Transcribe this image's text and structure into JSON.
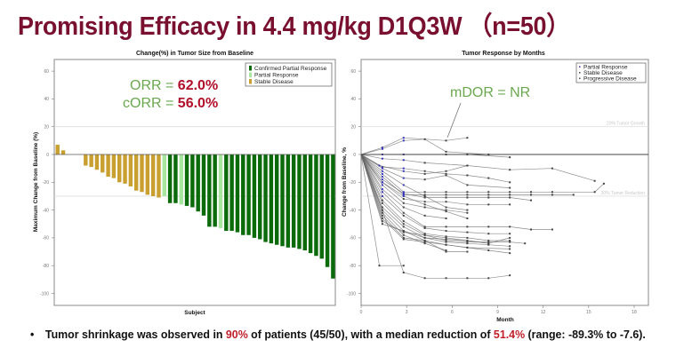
{
  "slide": {
    "title": "Promising Efficacy in 4.4 mg/kg D1Q3W （n=50）",
    "bullet": {
      "marker": "•",
      "parts": [
        {
          "text": "Tumor shrinkage was observed in ",
          "highlight": false
        },
        {
          "text": "90%",
          "highlight": true
        },
        {
          "text": " of patients (45/50), with a median reduction of ",
          "highlight": false
        },
        {
          "text": "51.4%",
          "highlight": true
        },
        {
          "text": " (range: -89.3% to -7.6).",
          "highlight": false
        }
      ]
    },
    "colors": {
      "title": "#7a1030",
      "highlight": "#c0202a",
      "annotation_green": "#6aa84f",
      "annotation_red": "#b0102a"
    }
  },
  "chart_data": [
    {
      "type": "bar",
      "title": "Change(%) in Tumor Size from Baseline",
      "xlabel": "Subject",
      "ylabel": "Maximum Change from Baseline (%)",
      "ylim": [
        -110,
        68
      ],
      "yticks": [
        60,
        40,
        20,
        0,
        -20,
        -40,
        -60,
        -80,
        -100
      ],
      "reference_lines": [
        20,
        -30
      ],
      "grid": false,
      "legend_position": "top-right",
      "legend": [
        {
          "label": "Confirmed Partial Response",
          "color": "#0b6b0b"
        },
        {
          "label": "Partial Response",
          "color": "#a8e6a0"
        },
        {
          "label": "Stable Disease",
          "color": "#c9a030"
        }
      ],
      "annotations": [
        {
          "label": "ORR = ",
          "value": "62.0%"
        },
        {
          "label": "cORR = ",
          "value": "56.0%"
        }
      ],
      "categories_count": 50,
      "values": [
        7,
        3,
        0,
        0,
        0,
        -8,
        -9,
        -11,
        -13,
        -16,
        -17,
        -20,
        -21,
        -23,
        -26,
        -27,
        -29,
        -30,
        -31,
        -30,
        -35,
        -35,
        -36,
        -37,
        -38,
        -41,
        -44,
        -52,
        -52,
        -53,
        -55,
        -55,
        -56,
        -58,
        -58,
        -60,
        -61,
        -63,
        -64,
        -65,
        -66,
        -67,
        -67,
        -68,
        -69,
        -71,
        -73,
        -75,
        -81,
        -89.3
      ],
      "response": [
        "SD",
        "SD",
        "SD",
        "SD",
        "SD",
        "SD",
        "SD",
        "SD",
        "SD",
        "SD",
        "SD",
        "SD",
        "SD",
        "SD",
        "SD",
        "SD",
        "SD",
        "SD",
        "SD",
        "PR",
        "cPR",
        "cPR",
        "PR",
        "cPR",
        "cPR",
        "cPR",
        "cPR",
        "cPR",
        "cPR",
        "PR",
        "cPR",
        "cPR",
        "cPR",
        "cPR",
        "cPR",
        "cPR",
        "cPR",
        "cPR",
        "cPR",
        "cPR",
        "cPR",
        "cPR",
        "cPR",
        "cPR",
        "cPR",
        "cPR",
        "cPR",
        "cPR",
        "cPR",
        "cPR"
      ]
    },
    {
      "type": "line",
      "title": "Tumor Response by Months",
      "xlabel": "Month",
      "ylabel": "Change from Baseline, %",
      "xlim": [
        0,
        19
      ],
      "ylim": [
        -110,
        68
      ],
      "xticks": [
        0,
        3,
        6,
        9,
        12,
        15,
        18
      ],
      "yticks": [
        60,
        40,
        20,
        0,
        -20,
        -40,
        -60,
        -80,
        -100
      ],
      "reference_lines": [
        {
          "y": 20,
          "label": "20% Tumor Growth"
        },
        {
          "y": -30,
          "label": "30% Tumor Reduction"
        }
      ],
      "legend_position": "top-right",
      "legend": [
        {
          "label": "Partial Response",
          "color": "#2a2aa0"
        },
        {
          "label": "Stable Disease",
          "color": "#444444"
        },
        {
          "label": "Progressive Disease",
          "color": "#444444"
        }
      ],
      "annotation": {
        "text": "mDOR = NR"
      },
      "series": [
        {
          "x": [
            0,
            1.4,
            2.8,
            5.6,
            7.0
          ],
          "y": [
            0,
            5,
            12,
            10,
            12
          ]
        },
        {
          "x": [
            0,
            1.4,
            2.8,
            4.2,
            5.6,
            8.4
          ],
          "y": [
            0,
            4,
            10,
            11,
            2,
            0
          ]
        },
        {
          "x": [
            0,
            1.4,
            2.8,
            5.6,
            7.0,
            9.8
          ],
          "y": [
            0,
            0,
            0,
            0,
            0,
            -2
          ]
        },
        {
          "x": [
            0,
            1.4,
            2.8,
            4.2,
            7.0,
            9.8,
            12.6,
            15.4
          ],
          "y": [
            0,
            -3,
            -4,
            -6,
            -8,
            -11,
            -10,
            -19
          ]
        },
        {
          "x": [
            0,
            1.4,
            2.8,
            4.2,
            5.6,
            7.0,
            8.4,
            9.8
          ],
          "y": [
            0,
            -9,
            -10,
            -12,
            -14,
            -15,
            -17,
            -20
          ]
        },
        {
          "x": [
            0,
            1.2,
            2.8,
            4.2,
            5.6,
            7.0
          ],
          "y": [
            0,
            -8,
            -12,
            -14,
            -12,
            -8
          ]
        },
        {
          "x": [
            0,
            1.4,
            2.8,
            4.2,
            5.6,
            7.0,
            9.8
          ],
          "y": [
            0,
            -10,
            -17,
            -18,
            -15,
            -22,
            -24
          ]
        },
        {
          "x": [
            0,
            1.4,
            2.8,
            4.2,
            5.6,
            7.0,
            8.4,
            9.8,
            11.2,
            12.6,
            15.4,
            16.0
          ],
          "y": [
            0,
            -14,
            -27,
            -27,
            -27,
            -27,
            -27,
            -27,
            -27,
            -27,
            -27,
            -21
          ]
        },
        {
          "x": [
            0,
            1.4,
            2.8,
            4.2,
            5.6,
            7.0,
            8.4,
            9.8,
            11.2,
            12.6,
            14.0
          ],
          "y": [
            0,
            -16,
            -29,
            -29,
            -29,
            -29,
            -29,
            -29,
            -29,
            -29,
            -29
          ]
        },
        {
          "x": [
            0,
            1.4,
            2.8,
            4.2,
            5.6,
            7.0,
            8.4,
            9.8,
            11.2
          ],
          "y": [
            0,
            -18,
            -28,
            -31,
            -31,
            -31,
            -31,
            -31,
            -33
          ]
        },
        {
          "x": [
            0,
            1.4,
            2.8,
            4.2,
            5.6,
            7.0,
            8.4,
            9.8
          ],
          "y": [
            0,
            -20,
            -32,
            -34,
            -34,
            -36,
            -36,
            -36
          ]
        },
        {
          "x": [
            0,
            1.4,
            2.8,
            4.2,
            5.6,
            7.0
          ],
          "y": [
            0,
            -22,
            -35,
            -38,
            -40,
            -42
          ]
        },
        {
          "x": [
            0,
            1.4,
            2.8,
            4.2,
            5.6
          ],
          "y": [
            0,
            -25,
            -38,
            -44,
            -46
          ]
        },
        {
          "x": [
            0,
            1.4,
            2.8,
            4.2,
            5.6,
            7.0,
            8.4,
            9.8,
            11.2,
            12.6
          ],
          "y": [
            0,
            -27,
            -42,
            -52,
            -52,
            -52,
            -52,
            -52,
            -54,
            -54
          ]
        },
        {
          "x": [
            0,
            1.4,
            2.8,
            4.2,
            5.6,
            7.0,
            8.4,
            9.8
          ],
          "y": [
            0,
            -30,
            -44,
            -53,
            -55,
            -56,
            -57,
            -57
          ]
        },
        {
          "x": [
            0,
            1.4,
            2.8,
            4.2,
            5.6,
            7.0,
            8.4,
            9.8
          ],
          "y": [
            0,
            -33,
            -48,
            -57,
            -59,
            -60,
            -62,
            -62
          ]
        },
        {
          "x": [
            0,
            1.4,
            2.8,
            4.2,
            5.6,
            7.0,
            8.4,
            9.8,
            10.8
          ],
          "y": [
            0,
            -35,
            -50,
            -58,
            -62,
            -63,
            -63,
            -63,
            -64
          ]
        },
        {
          "x": [
            0,
            1.4,
            2.8,
            4.2,
            5.6,
            7.0,
            8.4,
            9.8
          ],
          "y": [
            0,
            -38,
            -52,
            -60,
            -63,
            -64,
            -65,
            -66
          ]
        },
        {
          "x": [
            0,
            1.4,
            2.8,
            4.2,
            5.6,
            7.0,
            9.8
          ],
          "y": [
            0,
            -40,
            -55,
            -62,
            -65,
            -67,
            -68
          ]
        },
        {
          "x": [
            0,
            1.4,
            2.8,
            4.2,
            5.6
          ],
          "y": [
            0,
            -42,
            -58,
            -64,
            -69
          ]
        },
        {
          "x": [
            0,
            1.4,
            2.8,
            4.2,
            5.6,
            7.0
          ],
          "y": [
            0,
            -44,
            -60,
            -62,
            -70,
            -70
          ]
        },
        {
          "x": [
            0,
            1.4,
            2.8,
            4.2,
            5.6,
            7.0,
            8.4,
            9.8
          ],
          "y": [
            0,
            -46,
            -61,
            -63,
            -65,
            -67,
            -69,
            -71
          ]
        },
        {
          "x": [
            0,
            1.4,
            2.8,
            4.2,
            5.6,
            7.0,
            8.4
          ],
          "y": [
            0,
            -48,
            -56,
            -58,
            -60,
            -62,
            -64
          ]
        },
        {
          "x": [
            0,
            1.4,
            2.8,
            4.2,
            5.6,
            7.0,
            8.4,
            9.8
          ],
          "y": [
            0,
            -50,
            -55,
            -60,
            -61,
            -62,
            -64,
            -60
          ]
        },
        {
          "x": [
            0,
            1.2,
            2.8
          ],
          "y": [
            0,
            -80,
            -80
          ]
        },
        {
          "x": [
            0,
            1.4,
            2.8,
            4.2,
            5.6,
            7.0,
            8.4,
            9.8
          ],
          "y": [
            0,
            -40,
            -85,
            -89,
            -89,
            -89,
            -89,
            -87
          ]
        },
        {
          "x": [
            0,
            1.4,
            2.8,
            4.2,
            5.6,
            7.0
          ],
          "y": [
            0,
            -20,
            -30,
            -36,
            -41,
            -46
          ]
        },
        {
          "x": [
            0,
            1.4,
            2.8,
            4.2,
            5.6,
            7.0
          ],
          "y": [
            0,
            -12,
            -22,
            -30,
            -38,
            -40
          ]
        }
      ]
    }
  ]
}
